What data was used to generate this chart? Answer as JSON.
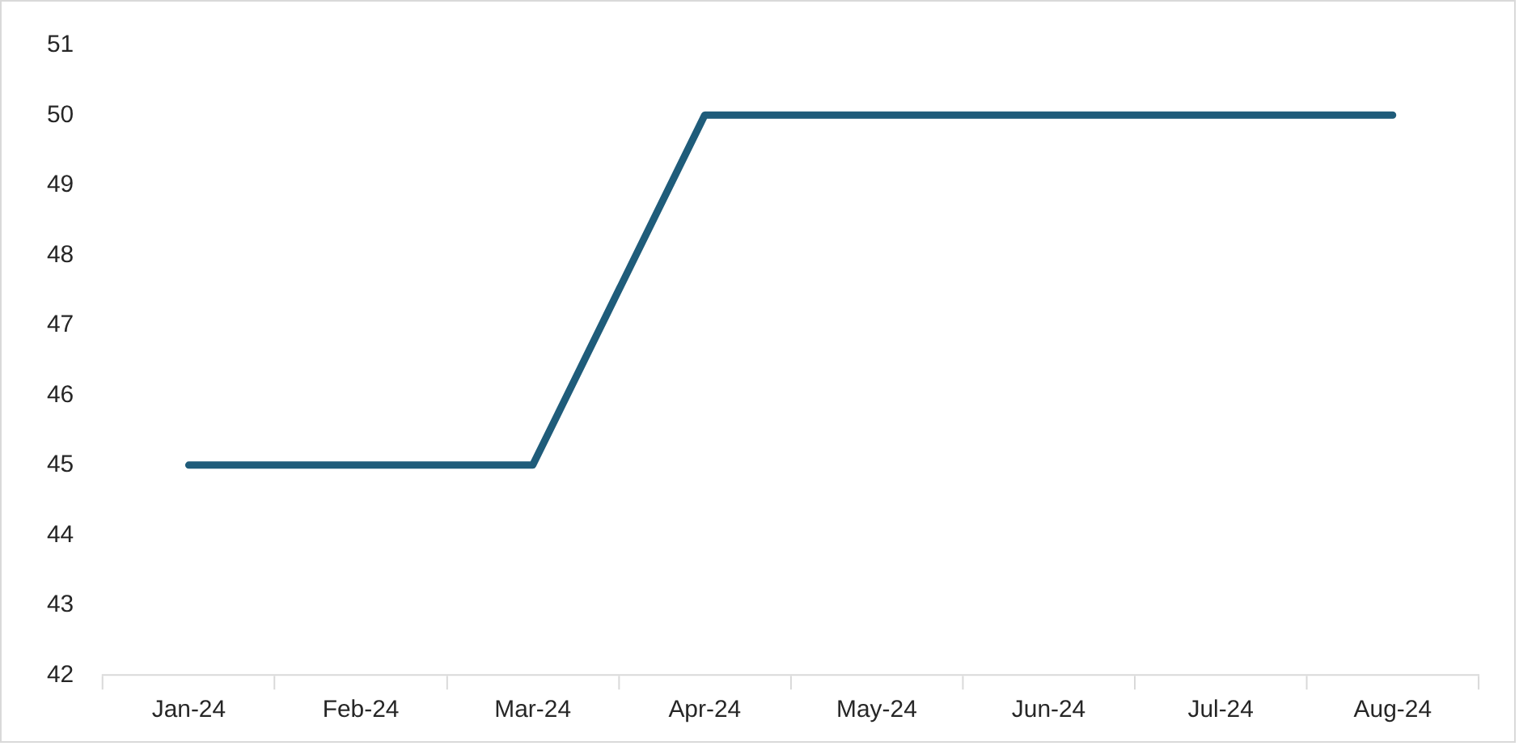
{
  "chart_data": {
    "type": "line",
    "categories": [
      "Jan-24",
      "Feb-24",
      "Mar-24",
      "Apr-24",
      "May-24",
      "Jun-24",
      "Jul-24",
      "Aug-24"
    ],
    "series": [
      {
        "color": "#1f5c7a",
        "values": [
          45,
          45,
          45,
          50,
          50,
          50,
          50,
          50
        ]
      }
    ],
    "ylim": [
      42,
      51
    ],
    "yticks": [
      42,
      43,
      44,
      45,
      46,
      47,
      48,
      49,
      50,
      51
    ],
    "grid": false,
    "marker": "none",
    "line_style": "solid",
    "legend": false
  }
}
